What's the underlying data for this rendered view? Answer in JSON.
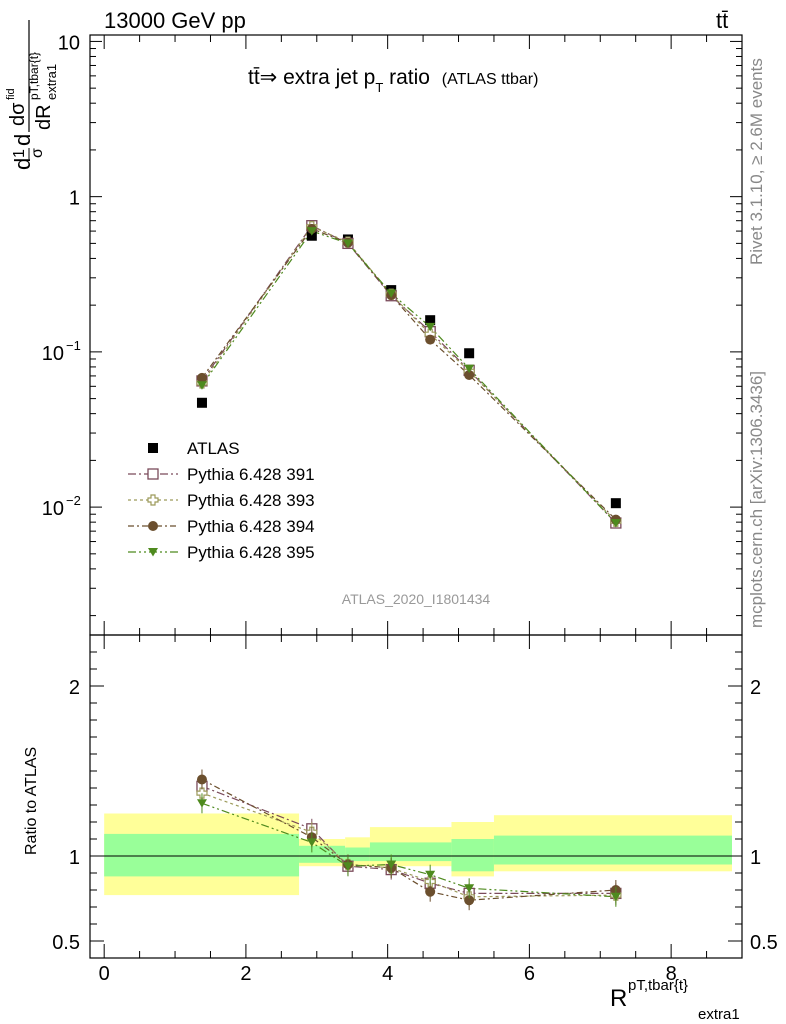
{
  "header": {
    "energy_label": "13000 GeV pp",
    "process_label": "tt̄"
  },
  "title": {
    "main": "tt̄⇒ extra jet p",
    "sub": "T",
    "ratio_word": " ratio",
    "small": "(ATLAS ttbar)"
  },
  "side_labels": {
    "rivet": "Rivet 3.1.10, ≥ 2.6M events",
    "mcplots": "mcplots.cern.ch [arXiv:1306.3436]"
  },
  "watermark": "ATLAS_2020_I1801434",
  "ylabel_main": {
    "a": "d",
    "b": "1",
    "c": "σ",
    "d": "d",
    "e": "dσ",
    "f": "fid",
    "g": "dR",
    "h": "pT,tbar{t}",
    "i": "extra1"
  },
  "ylabel_ratio": "Ratio to ATLAS",
  "xlabel": {
    "main": "R",
    "sup": "pT,tbar{t}",
    "sub": "extra1"
  },
  "main_ticks": {
    "y": [
      "10",
      "1",
      "10",
      "10"
    ],
    "y_exp": [
      "",
      "",
      "−1",
      "−2"
    ]
  },
  "ratio_ticks": {
    "left": [
      "2",
      "1",
      "0.5"
    ],
    "right": [
      "2",
      "1",
      "0.5"
    ]
  },
  "x_ticks": [
    "0",
    "2",
    "4",
    "6",
    "8"
  ],
  "legend": [
    {
      "label": "ATLAS",
      "marker": "filled-square",
      "color": "#000000"
    },
    {
      "label": "Pythia 6.428 391",
      "marker": "open-square",
      "color": "#7a4a5a"
    },
    {
      "label": "Pythia 6.428 393",
      "marker": "open-cross",
      "color": "#9c9a5a"
    },
    {
      "label": "Pythia 6.428 394",
      "marker": "filled-circle",
      "color": "#6b4f2e"
    },
    {
      "label": "Pythia 6.428 395",
      "marker": "filled-triangle-down",
      "color": "#4e8a1e"
    }
  ],
  "chart_data": [
    {
      "type": "scatter",
      "panel": "main",
      "yscale": "log",
      "xlim": [
        -0.2,
        9.0
      ],
      "ylim": [
        0.0015,
        11
      ],
      "x": [
        1.38,
        2.93,
        3.44,
        4.05,
        4.6,
        5.15,
        7.22
      ],
      "series": [
        {
          "name": "ATLAS",
          "values": [
            0.047,
            0.56,
            0.53,
            0.25,
            0.16,
            0.098,
            0.0106
          ]
        },
        {
          "name": "Pythia 6.428 391",
          "values": [
            0.065,
            0.65,
            0.5,
            0.23,
            0.135,
            0.076,
            0.0079
          ]
        },
        {
          "name": "Pythia 6.428 393",
          "values": [
            0.063,
            0.64,
            0.51,
            0.235,
            0.13,
            0.075,
            0.0081
          ]
        },
        {
          "name": "Pythia 6.428 394",
          "values": [
            0.068,
            0.62,
            0.505,
            0.232,
            0.12,
            0.071,
            0.0083
          ]
        },
        {
          "name": "Pythia 6.428 395",
          "values": [
            0.061,
            0.6,
            0.5,
            0.238,
            0.145,
            0.078,
            0.0079
          ]
        }
      ]
    },
    {
      "type": "scatter",
      "panel": "ratio",
      "xlim": [
        -0.2,
        9.0
      ],
      "ylim": [
        0.4,
        2.3
      ],
      "x": [
        1.38,
        2.93,
        3.44,
        4.05,
        4.6,
        5.15,
        7.22
      ],
      "bands": {
        "edges": [
          0,
          2.75,
          3.4,
          3.75,
          4.9,
          5.5,
          9.0
        ],
        "inner": [
          [
            0.88,
            1.13
          ],
          [
            0.96,
            1.06
          ],
          [
            0.97,
            1.05
          ],
          [
            0.97,
            1.08
          ],
          [
            0.91,
            1.1
          ],
          [
            0.95,
            1.12
          ],
          [
            0.96,
            1.14
          ]
        ],
        "outer": [
          [
            0.77,
            1.25
          ],
          [
            0.94,
            1.1
          ],
          [
            0.94,
            1.11
          ],
          [
            0.94,
            1.17
          ],
          [
            0.88,
            1.2
          ],
          [
            0.91,
            1.24
          ],
          [
            0.89,
            1.26
          ]
        ]
      },
      "series": [
        {
          "name": "Pythia 6.428 391",
          "values": [
            1.41,
            1.16,
            0.94,
            0.92,
            0.84,
            0.78,
            0.78
          ]
        },
        {
          "name": "Pythia 6.428 393",
          "values": [
            1.37,
            1.14,
            0.95,
            0.93,
            0.85,
            0.76,
            0.77
          ]
        },
        {
          "name": "Pythia 6.428 394",
          "values": [
            1.45,
            1.11,
            0.95,
            0.93,
            0.79,
            0.74,
            0.8
          ]
        },
        {
          "name": "Pythia 6.428 395",
          "values": [
            1.31,
            1.08,
            0.94,
            0.95,
            0.89,
            0.81,
            0.76
          ]
        }
      ]
    }
  ]
}
